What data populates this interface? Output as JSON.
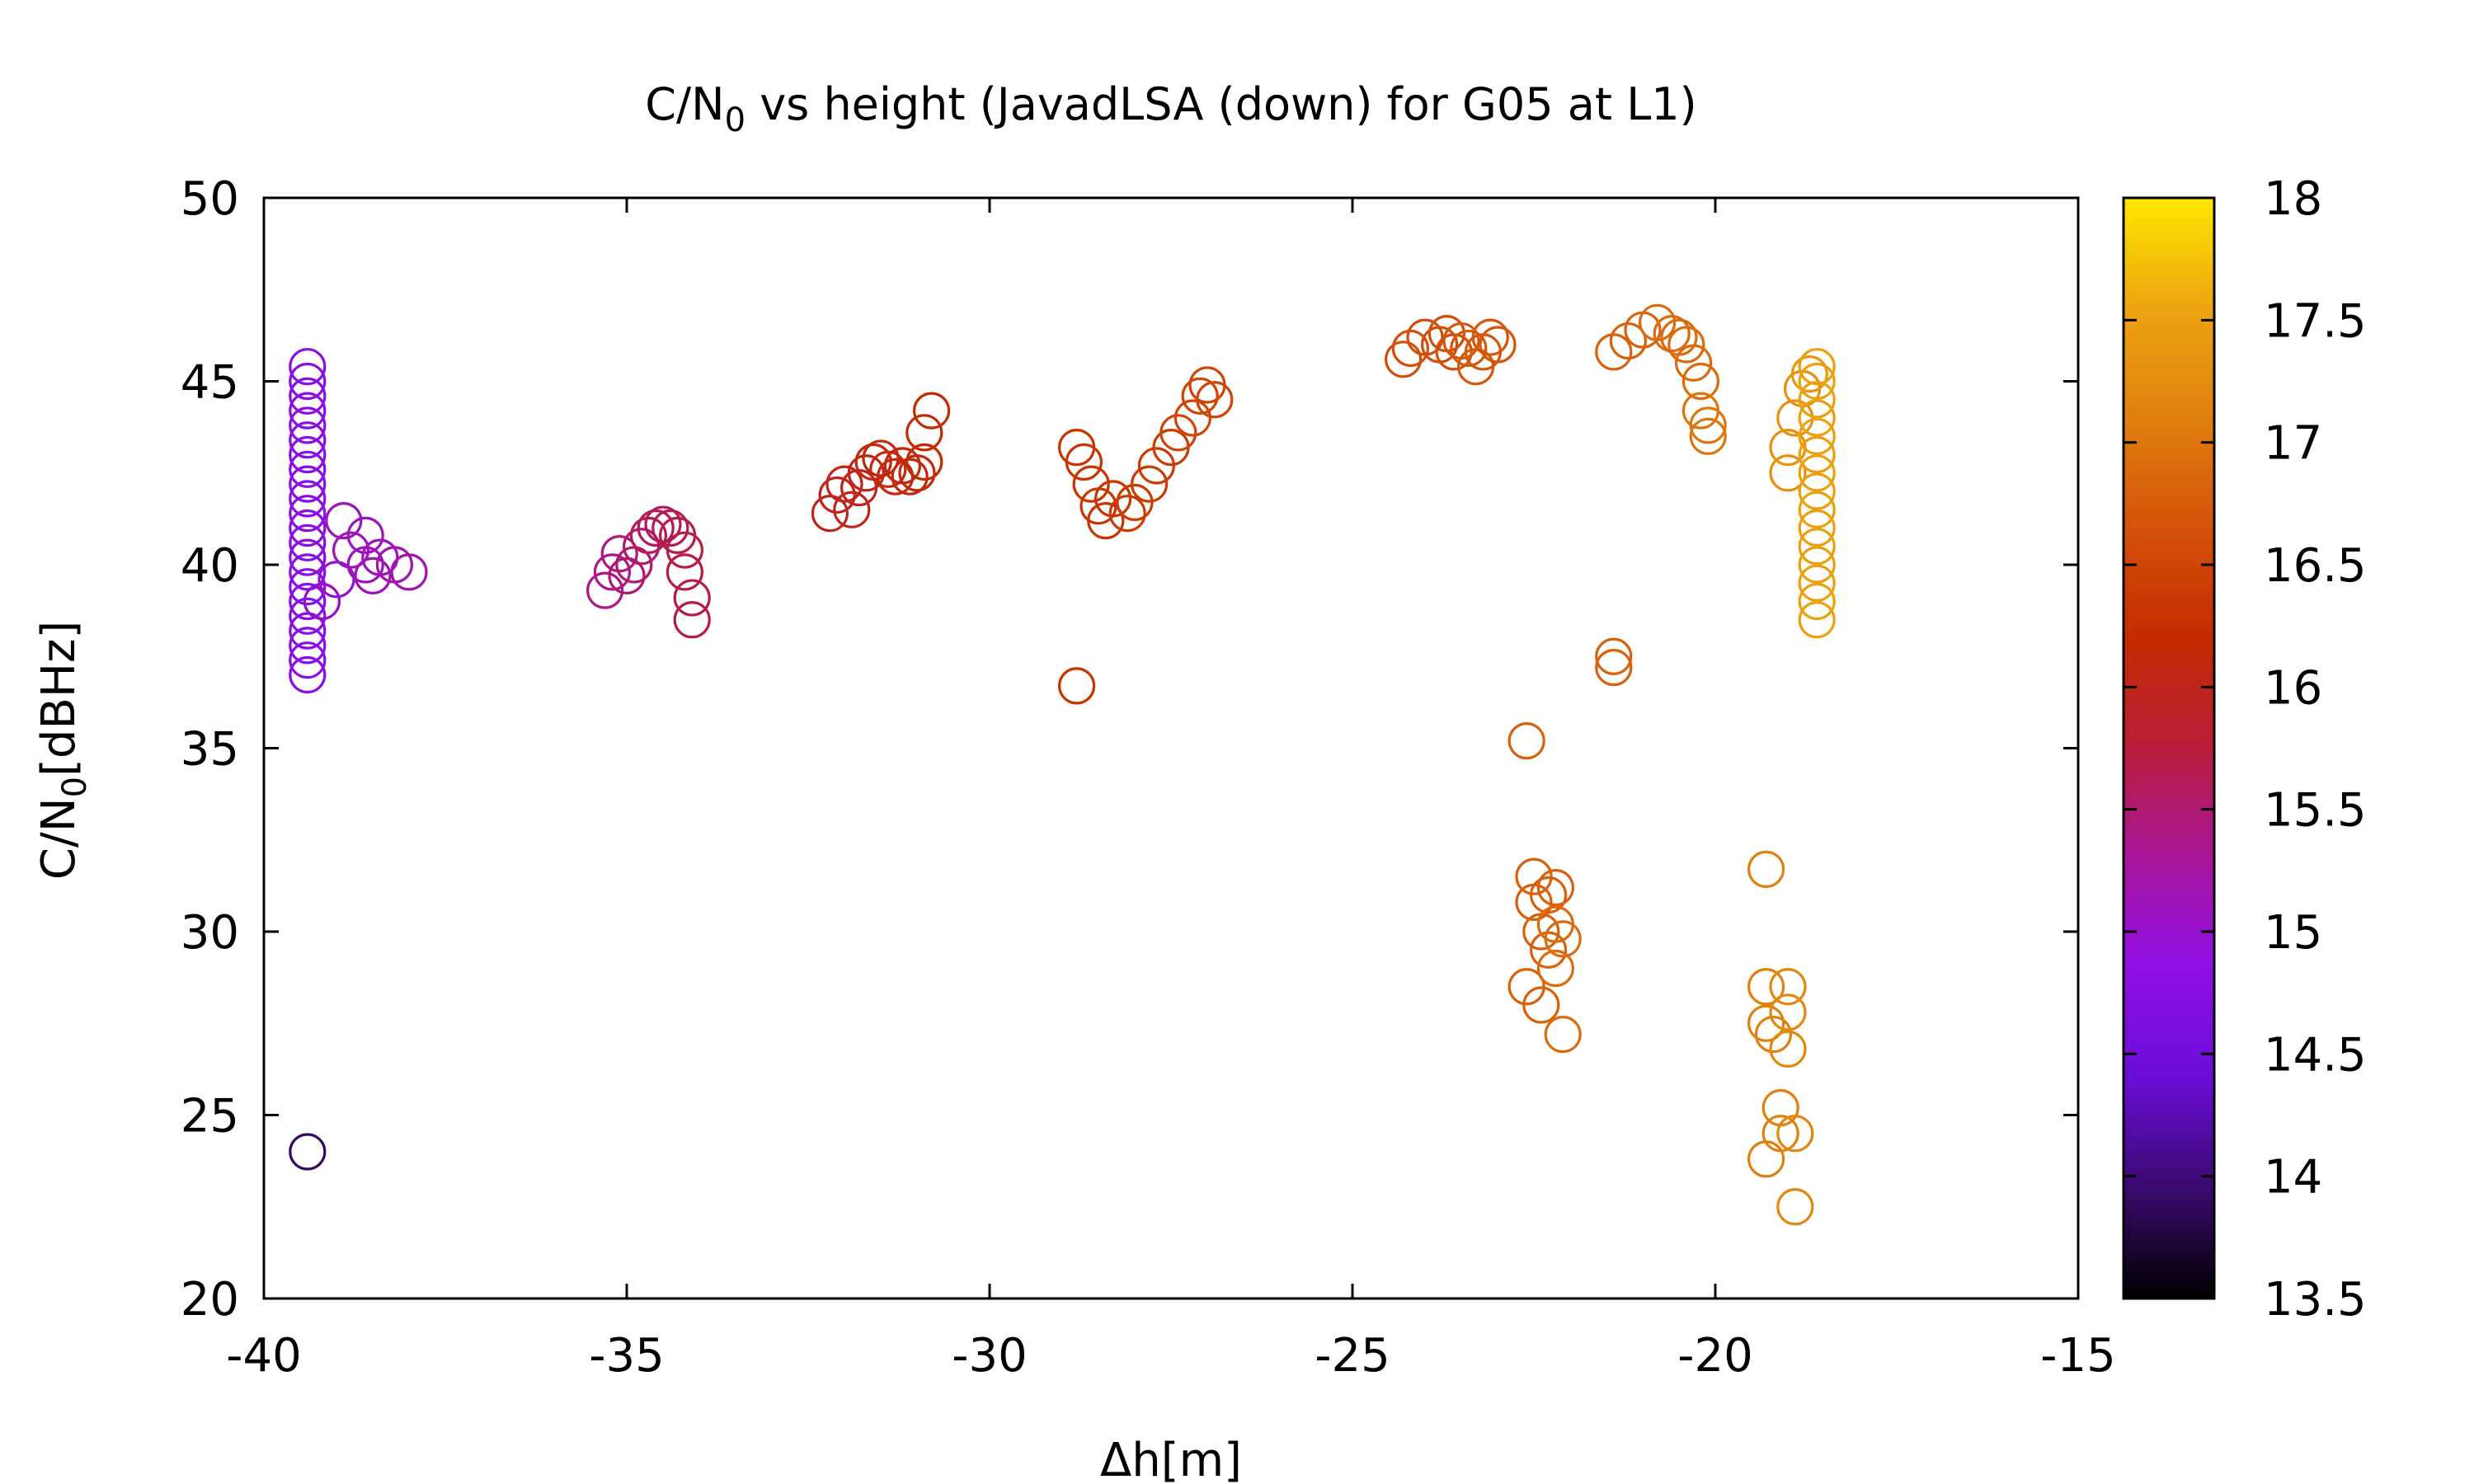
{
  "chart_data": {
    "type": "scatter",
    "title": {
      "main": "C/N",
      "sub": "0",
      "rest": " vs height (JavadLSA (down) for G05 at L1)"
    },
    "xlabel": "Δh[m]",
    "ylabel": {
      "main": "C/N",
      "sub": "0",
      "rest": "[dBHz]"
    },
    "xlim": [
      -40,
      -15
    ],
    "ylim": [
      20,
      50
    ],
    "xticks": [
      -40,
      -35,
      -30,
      -25,
      -20,
      -15
    ],
    "yticks": [
      20,
      25,
      30,
      35,
      40,
      45,
      50
    ],
    "xtick_labels": [
      "-40",
      "-35",
      "-30",
      "-25",
      "-20",
      "-15"
    ],
    "ytick_labels": [
      "20",
      "25",
      "30",
      "35",
      "40",
      "45",
      "50"
    ],
    "marker": "open-circle",
    "grid": false,
    "colorbar": {
      "min": 13.5,
      "max": 18,
      "ticks": [
        13.5,
        14,
        14.5,
        15,
        15.5,
        16,
        16.5,
        17,
        17.5,
        18
      ],
      "tick_labels": [
        "13.5",
        "14",
        "14.5",
        "15",
        "15.5",
        "16",
        "16.5",
        "17",
        "17.5",
        "18"
      ],
      "palette": [
        "#000000",
        "#3a0a6e",
        "#6a0dd8",
        "#8f0fe6",
        "#a8169a",
        "#b81e3a",
        "#c42b00",
        "#d4520a",
        "#e0800f",
        "#eca410",
        "#ffe800"
      ]
    },
    "points": [
      {
        "x": -39.4,
        "y": 24.0,
        "c": 13.9
      },
      {
        "x": -39.4,
        "y": 37.0,
        "c": 14.8
      },
      {
        "x": -39.4,
        "y": 37.4,
        "c": 14.8
      },
      {
        "x": -39.4,
        "y": 37.8,
        "c": 14.8
      },
      {
        "x": -39.4,
        "y": 38.2,
        "c": 14.8
      },
      {
        "x": -39.4,
        "y": 38.6,
        "c": 14.8
      },
      {
        "x": -39.4,
        "y": 39.0,
        "c": 14.8
      },
      {
        "x": -39.4,
        "y": 39.4,
        "c": 14.8
      },
      {
        "x": -39.4,
        "y": 39.8,
        "c": 14.8
      },
      {
        "x": -39.4,
        "y": 40.2,
        "c": 14.8
      },
      {
        "x": -39.4,
        "y": 40.6,
        "c": 14.8
      },
      {
        "x": -39.4,
        "y": 41.0,
        "c": 14.8
      },
      {
        "x": -39.4,
        "y": 41.4,
        "c": 14.8
      },
      {
        "x": -39.4,
        "y": 41.8,
        "c": 14.8
      },
      {
        "x": -39.4,
        "y": 42.2,
        "c": 14.8
      },
      {
        "x": -39.4,
        "y": 42.6,
        "c": 14.8
      },
      {
        "x": -39.4,
        "y": 43.0,
        "c": 14.8
      },
      {
        "x": -39.4,
        "y": 43.4,
        "c": 14.8
      },
      {
        "x": -39.4,
        "y": 43.8,
        "c": 14.8
      },
      {
        "x": -39.4,
        "y": 44.2,
        "c": 14.8
      },
      {
        "x": -39.4,
        "y": 44.6,
        "c": 14.8
      },
      {
        "x": -39.4,
        "y": 45.0,
        "c": 14.8
      },
      {
        "x": -39.4,
        "y": 45.4,
        "c": 14.8
      },
      {
        "x": -39.2,
        "y": 39.0,
        "c": 15.0
      },
      {
        "x": -39.0,
        "y": 39.6,
        "c": 15.0
      },
      {
        "x": -38.8,
        "y": 40.4,
        "c": 15.1
      },
      {
        "x": -38.9,
        "y": 41.2,
        "c": 15.1
      },
      {
        "x": -38.6,
        "y": 40.8,
        "c": 15.1
      },
      {
        "x": -38.5,
        "y": 39.7,
        "c": 15.1
      },
      {
        "x": -38.4,
        "y": 40.2,
        "c": 15.1
      },
      {
        "x": -38.2,
        "y": 40.0,
        "c": 15.2
      },
      {
        "x": -38.0,
        "y": 39.8,
        "c": 15.2
      },
      {
        "x": -38.6,
        "y": 40.0,
        "c": 15.1
      },
      {
        "x": -35.3,
        "y": 39.3,
        "c": 15.4
      },
      {
        "x": -35.2,
        "y": 39.8,
        "c": 15.4
      },
      {
        "x": -35.1,
        "y": 40.3,
        "c": 15.4
      },
      {
        "x": -35.0,
        "y": 39.7,
        "c": 15.5
      },
      {
        "x": -34.9,
        "y": 40.0,
        "c": 15.5
      },
      {
        "x": -34.8,
        "y": 40.5,
        "c": 15.5
      },
      {
        "x": -34.7,
        "y": 40.8,
        "c": 15.6
      },
      {
        "x": -34.6,
        "y": 41.0,
        "c": 15.6
      },
      {
        "x": -34.5,
        "y": 41.1,
        "c": 15.6
      },
      {
        "x": -34.4,
        "y": 41.0,
        "c": 15.6
      },
      {
        "x": -34.3,
        "y": 40.8,
        "c": 15.7
      },
      {
        "x": -34.2,
        "y": 40.4,
        "c": 15.7
      },
      {
        "x": -34.2,
        "y": 39.8,
        "c": 15.7
      },
      {
        "x": -34.1,
        "y": 39.1,
        "c": 15.7
      },
      {
        "x": -34.1,
        "y": 38.5,
        "c": 15.7
      },
      {
        "x": -32.2,
        "y": 41.4,
        "c": 16.0
      },
      {
        "x": -32.1,
        "y": 41.9,
        "c": 16.0
      },
      {
        "x": -32.0,
        "y": 42.2,
        "c": 16.0
      },
      {
        "x": -31.9,
        "y": 41.5,
        "c": 16.0
      },
      {
        "x": -31.8,
        "y": 42.1,
        "c": 16.0
      },
      {
        "x": -31.7,
        "y": 42.5,
        "c": 16.0
      },
      {
        "x": -31.6,
        "y": 42.8,
        "c": 16.1
      },
      {
        "x": -31.5,
        "y": 42.9,
        "c": 16.1
      },
      {
        "x": -31.4,
        "y": 42.6,
        "c": 16.1
      },
      {
        "x": -31.3,
        "y": 42.4,
        "c": 16.1
      },
      {
        "x": -31.2,
        "y": 42.7,
        "c": 16.1
      },
      {
        "x": -31.1,
        "y": 42.4,
        "c": 16.1
      },
      {
        "x": -31.0,
        "y": 42.5,
        "c": 16.1
      },
      {
        "x": -30.9,
        "y": 42.8,
        "c": 16.2
      },
      {
        "x": -30.9,
        "y": 43.6,
        "c": 16.2
      },
      {
        "x": -30.8,
        "y": 44.2,
        "c": 16.2
      },
      {
        "x": -28.8,
        "y": 36.7,
        "c": 16.3
      },
      {
        "x": -28.8,
        "y": 43.2,
        "c": 16.3
      },
      {
        "x": -28.7,
        "y": 42.8,
        "c": 16.3
      },
      {
        "x": -28.6,
        "y": 42.2,
        "c": 16.3
      },
      {
        "x": -28.5,
        "y": 41.6,
        "c": 16.3
      },
      {
        "x": -28.4,
        "y": 41.2,
        "c": 16.3
      },
      {
        "x": -28.3,
        "y": 41.8,
        "c": 16.3
      },
      {
        "x": -28.1,
        "y": 41.4,
        "c": 16.4
      },
      {
        "x": -28.0,
        "y": 41.7,
        "c": 16.4
      },
      {
        "x": -27.8,
        "y": 42.2,
        "c": 16.4
      },
      {
        "x": -27.7,
        "y": 42.7,
        "c": 16.4
      },
      {
        "x": -27.5,
        "y": 43.2,
        "c": 16.4
      },
      {
        "x": -27.4,
        "y": 43.6,
        "c": 16.5
      },
      {
        "x": -27.2,
        "y": 44.0,
        "c": 16.5
      },
      {
        "x": -27.1,
        "y": 44.6,
        "c": 16.5
      },
      {
        "x": -27.0,
        "y": 44.9,
        "c": 16.5
      },
      {
        "x": -26.9,
        "y": 44.5,
        "c": 16.5
      },
      {
        "x": -24.3,
        "y": 45.6,
        "c": 16.6
      },
      {
        "x": -24.2,
        "y": 45.9,
        "c": 16.6
      },
      {
        "x": -24.0,
        "y": 46.2,
        "c": 16.6
      },
      {
        "x": -23.8,
        "y": 46.0,
        "c": 16.6
      },
      {
        "x": -23.7,
        "y": 46.3,
        "c": 16.6
      },
      {
        "x": -23.6,
        "y": 45.8,
        "c": 16.6
      },
      {
        "x": -23.5,
        "y": 46.1,
        "c": 16.7
      },
      {
        "x": -23.4,
        "y": 45.9,
        "c": 16.7
      },
      {
        "x": -23.3,
        "y": 45.4,
        "c": 16.7
      },
      {
        "x": -23.2,
        "y": 45.8,
        "c": 16.7
      },
      {
        "x": -23.1,
        "y": 46.2,
        "c": 16.7
      },
      {
        "x": -23.0,
        "y": 46.0,
        "c": 16.7
      },
      {
        "x": -22.6,
        "y": 35.2,
        "c": 16.8
      },
      {
        "x": -22.6,
        "y": 28.5,
        "c": 16.8
      },
      {
        "x": -22.5,
        "y": 31.5,
        "c": 16.8
      },
      {
        "x": -22.5,
        "y": 30.8,
        "c": 16.8
      },
      {
        "x": -22.4,
        "y": 30.0,
        "c": 16.8
      },
      {
        "x": -22.4,
        "y": 28.0,
        "c": 16.8
      },
      {
        "x": -22.3,
        "y": 31.0,
        "c": 16.8
      },
      {
        "x": -22.3,
        "y": 29.5,
        "c": 16.8
      },
      {
        "x": -22.2,
        "y": 31.2,
        "c": 16.8
      },
      {
        "x": -22.2,
        "y": 30.2,
        "c": 16.9
      },
      {
        "x": -22.2,
        "y": 29.0,
        "c": 16.9
      },
      {
        "x": -22.1,
        "y": 29.8,
        "c": 16.9
      },
      {
        "x": -22.1,
        "y": 27.2,
        "c": 16.9
      },
      {
        "x": -21.4,
        "y": 37.5,
        "c": 16.8
      },
      {
        "x": -21.4,
        "y": 37.2,
        "c": 16.8
      },
      {
        "x": -21.4,
        "y": 45.8,
        "c": 16.8
      },
      {
        "x": -21.2,
        "y": 46.1,
        "c": 16.8
      },
      {
        "x": -21.0,
        "y": 46.4,
        "c": 16.8
      },
      {
        "x": -20.8,
        "y": 46.6,
        "c": 16.9
      },
      {
        "x": -20.6,
        "y": 46.3,
        "c": 16.9
      },
      {
        "x": -20.5,
        "y": 46.2,
        "c": 16.9
      },
      {
        "x": -20.4,
        "y": 46.0,
        "c": 16.9
      },
      {
        "x": -20.3,
        "y": 45.5,
        "c": 16.9
      },
      {
        "x": -20.2,
        "y": 45.0,
        "c": 16.9
      },
      {
        "x": -20.2,
        "y": 44.2,
        "c": 17.0
      },
      {
        "x": -20.1,
        "y": 43.8,
        "c": 17.0
      },
      {
        "x": -20.1,
        "y": 43.5,
        "c": 17.0
      },
      {
        "x": -19.3,
        "y": 31.7,
        "c": 17.1
      },
      {
        "x": -19.3,
        "y": 28.5,
        "c": 17.1
      },
      {
        "x": -19.3,
        "y": 27.5,
        "c": 17.1
      },
      {
        "x": -19.3,
        "y": 23.8,
        "c": 17.1
      },
      {
        "x": -19.2,
        "y": 27.2,
        "c": 17.1
      },
      {
        "x": -19.1,
        "y": 25.2,
        "c": 17.1
      },
      {
        "x": -19.1,
        "y": 24.5,
        "c": 17.1
      },
      {
        "x": -19.0,
        "y": 28.5,
        "c": 17.2
      },
      {
        "x": -19.0,
        "y": 27.8,
        "c": 17.2
      },
      {
        "x": -19.0,
        "y": 26.8,
        "c": 17.2
      },
      {
        "x": -18.9,
        "y": 24.5,
        "c": 17.2
      },
      {
        "x": -18.9,
        "y": 22.5,
        "c": 17.2
      },
      {
        "x": -19.0,
        "y": 42.5,
        "c": 17.3
      },
      {
        "x": -19.0,
        "y": 43.2,
        "c": 17.3
      },
      {
        "x": -18.9,
        "y": 44.0,
        "c": 17.3
      },
      {
        "x": -18.8,
        "y": 44.8,
        "c": 17.3
      },
      {
        "x": -18.7,
        "y": 45.2,
        "c": 17.4
      },
      {
        "x": -18.6,
        "y": 38.5,
        "c": 17.5
      },
      {
        "x": -18.6,
        "y": 39.0,
        "c": 17.5
      },
      {
        "x": -18.6,
        "y": 39.5,
        "c": 17.5
      },
      {
        "x": -18.6,
        "y": 40.0,
        "c": 17.5
      },
      {
        "x": -18.6,
        "y": 40.5,
        "c": 17.5
      },
      {
        "x": -18.6,
        "y": 41.0,
        "c": 17.5
      },
      {
        "x": -18.6,
        "y": 41.5,
        "c": 17.5
      },
      {
        "x": -18.6,
        "y": 42.0,
        "c": 17.5
      },
      {
        "x": -18.6,
        "y": 42.5,
        "c": 17.5
      },
      {
        "x": -18.6,
        "y": 43.0,
        "c": 17.5
      },
      {
        "x": -18.6,
        "y": 43.5,
        "c": 17.5
      },
      {
        "x": -18.6,
        "y": 44.0,
        "c": 17.5
      },
      {
        "x": -18.6,
        "y": 44.5,
        "c": 17.5
      },
      {
        "x": -18.6,
        "y": 45.0,
        "c": 17.5
      },
      {
        "x": -18.6,
        "y": 45.4,
        "c": 17.5
      }
    ]
  }
}
